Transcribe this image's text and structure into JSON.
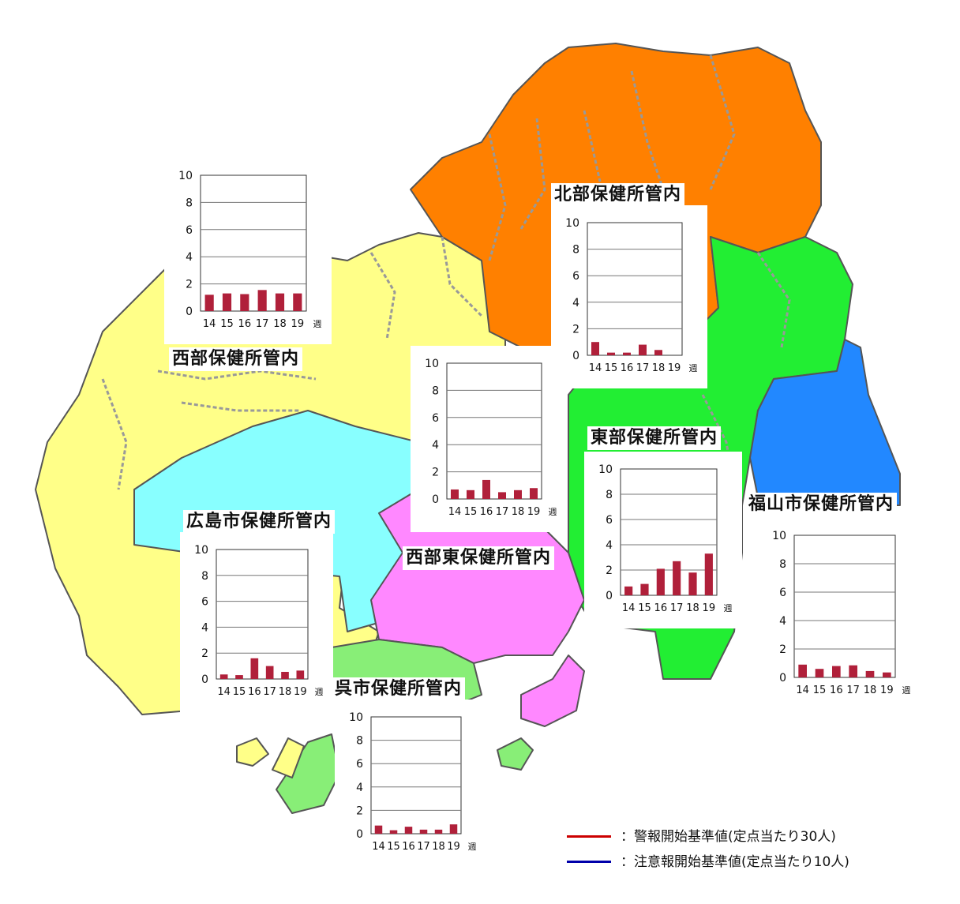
{
  "colors": {
    "north": "#FF8000",
    "west": "#FFFF88",
    "hiroshima_city": "#88FFFF",
    "west_east": "#FF88FF",
    "east": "#22EE33",
    "fukuyama": "#2288FF",
    "kure": "#88EE77",
    "bar": "#B0203A"
  },
  "regions": [
    {
      "name": "北部保健所管内",
      "weeks": [
        "14",
        "15",
        "16",
        "17",
        "18",
        "19"
      ],
      "values": [
        1.0,
        0.2,
        0.2,
        0.8,
        0.4,
        0.0
      ],
      "y_ticks": [
        "0",
        "2",
        "4",
        "6",
        "8",
        "10"
      ],
      "unit": "週"
    },
    {
      "name": "西部保健所管内",
      "weeks": [
        "14",
        "15",
        "16",
        "17",
        "18",
        "19"
      ],
      "values": [
        1.2,
        1.3,
        1.25,
        1.55,
        1.3,
        1.3
      ],
      "y_ticks": [
        "0",
        "2",
        "4",
        "6",
        "8",
        "10"
      ],
      "unit": "週"
    },
    {
      "name": "",
      "weeks": [
        "14",
        "15",
        "16",
        "17",
        "18",
        "19"
      ],
      "values": [
        0.7,
        0.65,
        1.4,
        0.5,
        0.65,
        0.8
      ],
      "y_ticks": [
        "0",
        "2",
        "4",
        "6",
        "8",
        "10"
      ],
      "unit": "週"
    },
    {
      "name": "東部保健所管内",
      "weeks": [
        "14",
        "15",
        "16",
        "17",
        "18",
        "19"
      ],
      "values": [
        0.7,
        0.9,
        2.1,
        2.7,
        1.8,
        3.3
      ],
      "y_ticks": [
        "0",
        "2",
        "4",
        "6",
        "8",
        "10"
      ],
      "unit": "週"
    },
    {
      "name": "福山市保健所管内",
      "weeks": [
        "14",
        "15",
        "16",
        "17",
        "18",
        "19"
      ],
      "values": [
        0.9,
        0.6,
        0.8,
        0.85,
        0.45,
        0.35
      ],
      "y_ticks": [
        "0",
        "2",
        "4",
        "6",
        "8",
        "10"
      ],
      "unit": "週"
    },
    {
      "name": "広島市保健所管内",
      "weeks": [
        "14",
        "15",
        "16",
        "17",
        "18",
        "19"
      ],
      "values": [
        0.35,
        0.3,
        1.6,
        1.0,
        0.55,
        0.65
      ],
      "y_ticks": [
        "0",
        "2",
        "4",
        "6",
        "8",
        "10"
      ],
      "unit": "週"
    },
    {
      "name": "呉市保健所管内",
      "weeks": [
        "14",
        "15",
        "16",
        "17",
        "18",
        "19"
      ],
      "values": [
        0.7,
        0.3,
        0.6,
        0.35,
        0.35,
        0.8
      ],
      "y_ticks": [
        "0",
        "2",
        "4",
        "6",
        "8",
        "10"
      ],
      "unit": "週"
    }
  ],
  "extra_labels": {
    "west_east": "西部東保健所管内"
  },
  "legend": {
    "items": [
      {
        "text": "：警報開始基準値(定点当たり30人)",
        "color": "#CC0000"
      },
      {
        "text": "：注意報開始基準値(定点当たり10人)",
        "color": "#0000AA"
      }
    ]
  }
}
